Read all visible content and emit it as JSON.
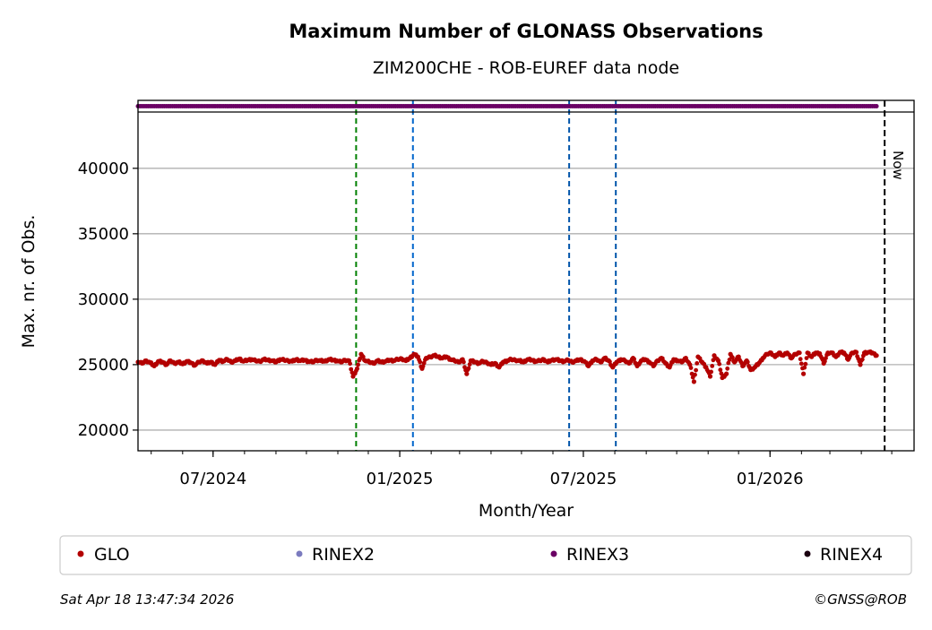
{
  "chart_data": {
    "type": "scatter",
    "title": "Maximum Number of GLONASS Observations",
    "subtitle": "ZIM200CHE - ROB-EUREF data node",
    "xlabel": "Month/Year",
    "ylabel": "Max. nr. of Obs.",
    "ylim": [
      18420,
      44300
    ],
    "xlim": [
      "2024-04-18",
      "2026-05-23"
    ],
    "yticks": [
      20000,
      25000,
      30000,
      35000,
      40000
    ],
    "ytick_labels": [
      "20000",
      "25000",
      "30000",
      "35000",
      "40000"
    ],
    "xticks": [
      {
        "date": "2024-07-01",
        "label": "07/2024"
      },
      {
        "date": "2025-01-01",
        "label": "01/2025"
      },
      {
        "date": "2025-07-01",
        "label": "07/2025"
      },
      {
        "date": "2026-01-01",
        "label": "01/2026"
      }
    ],
    "grid": "horizontal",
    "series": [
      {
        "name": "GLO",
        "color": "#b30000",
        "start_date": "2024-04-18",
        "step_days": 4,
        "values": [
          25200,
          25100,
          25300,
          25150,
          24900,
          25250,
          25200,
          25000,
          25300,
          25100,
          25200,
          25050,
          25250,
          25150,
          24950,
          25200,
          25300,
          25100,
          25200,
          25000,
          25350,
          25250,
          25400,
          25200,
          25300,
          25450,
          25250,
          25350,
          25400,
          25300,
          25250,
          25400,
          25350,
          25300,
          25200,
          25400,
          25350,
          25300,
          25250,
          25400,
          25300,
          25350,
          25250,
          25200,
          25350,
          25300,
          25250,
          25400,
          25350,
          25300,
          25200,
          25350,
          25300,
          24100,
          24700,
          25800,
          25300,
          25200,
          25100,
          25300,
          25200,
          25250,
          25350,
          25300,
          25400,
          25450,
          25300,
          25500,
          25800,
          25600,
          24700,
          25500,
          25600,
          25700,
          25600,
          25500,
          25600,
          25400,
          25300,
          25200,
          25400,
          24300,
          25300,
          25200,
          25100,
          25250,
          25150,
          25000,
          25100,
          24800,
          25200,
          25300,
          25400,
          25350,
          25300,
          25200,
          25400,
          25350,
          25250,
          25300,
          25400,
          25200,
          25350,
          25400,
          25300,
          25250,
          25350,
          25200,
          25300,
          25400,
          25250,
          24900,
          25300,
          25400,
          25200,
          25500,
          25300,
          24800,
          25200,
          25400,
          25300,
          25100,
          25500,
          24900,
          25300,
          25400,
          25200,
          24900,
          25300,
          25500,
          25100,
          24800,
          25400,
          25300,
          25200,
          25500,
          25000,
          23700,
          25600,
          25200,
          24800,
          24100,
          25700,
          25300,
          24000,
          24300,
          25800,
          25200,
          25600,
          24900,
          25300,
          24600,
          24800,
          25100,
          25500,
          25800,
          25900,
          25600,
          25900,
          25700,
          25900,
          25500,
          25800,
          25900,
          24300,
          25900,
          25600,
          25900,
          25850,
          25100,
          25900,
          25900,
          25600,
          25950,
          25900,
          25400,
          25900,
          25950,
          25000,
          25900,
          25950,
          25900,
          25700
        ]
      },
      {
        "name": "RINEX2",
        "color": "#7b7bbf"
      },
      {
        "name": "RINEX3",
        "color": "#6a0064",
        "available_from": "2024-04-18",
        "available_to": "2026-04-17"
      },
      {
        "name": "RINEX4",
        "color": "#1a0010"
      }
    ],
    "events": [
      {
        "date": "2024-11-19",
        "color": "#008000"
      },
      {
        "date": "2025-01-14",
        "color": "#0066cc"
      },
      {
        "date": "2025-06-17",
        "color": "#0055aa"
      },
      {
        "date": "2025-08-02",
        "color": "#0055aa"
      }
    ],
    "now": {
      "date": "2026-04-24",
      "label": "Now"
    },
    "legend_position": "bottom"
  },
  "footer": {
    "timestamp": "Sat Apr 18 13:47:34 2026",
    "copyright": "©GNSS@ROB"
  }
}
